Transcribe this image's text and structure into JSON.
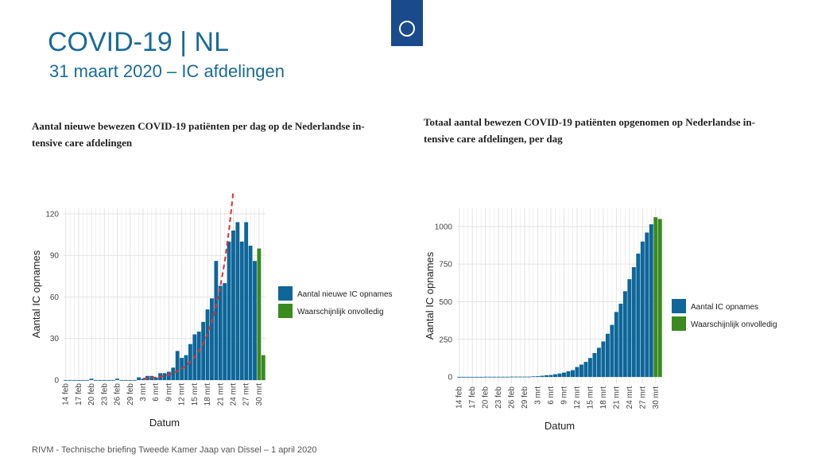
{
  "slide": {
    "title": "COVID-19 | NL",
    "subtitle": "31 maart 2020 – IC afdelingen",
    "footer": "RIVM - Technische briefing Tweede Kamer Jaap van Dissel – 1 april 2020"
  },
  "chart_data": [
    {
      "type": "bar",
      "title": [
        "Aantal nieuwe bewezen COVID-19 patiënten per dag op de Nederlandse in-",
        "tensive care afdelingen"
      ],
      "xlabel": "Datum",
      "ylabel": "Aantal IC opnames",
      "categories": [
        "14 feb",
        null,
        null,
        "17 feb",
        null,
        null,
        "20 feb",
        null,
        null,
        "23 feb",
        null,
        null,
        "26 feb",
        null,
        null,
        "29 feb",
        null,
        null,
        "3 mrt",
        null,
        null,
        "6 mrt",
        null,
        null,
        "9 mrt",
        null,
        null,
        "12 mrt",
        null,
        null,
        "15 mrt",
        null,
        null,
        "18 mrt",
        null,
        null,
        "21 mrt",
        null,
        null,
        "24 mrt",
        null,
        null,
        "27 mrt",
        null,
        null,
        "30 mrt",
        null
      ],
      "series": [
        {
          "name": "Aantal nieuwe IC opnames",
          "color": "#0e6699",
          "values": [
            0,
            0,
            0,
            0,
            0,
            0,
            1,
            0,
            0,
            0,
            0,
            0,
            1,
            0,
            0,
            0,
            0,
            2,
            1,
            3,
            3,
            2,
            5,
            5,
            6,
            9,
            21,
            16,
            18,
            26,
            33,
            35,
            42,
            51,
            59,
            86,
            68,
            70,
            100,
            108,
            114,
            100,
            114,
            97,
            86,
            null,
            null
          ]
        },
        {
          "name": "Waarschijnlijk onvolledig",
          "color": "#3a8a1e",
          "values": [
            null,
            null,
            null,
            null,
            null,
            null,
            null,
            null,
            null,
            null,
            null,
            null,
            null,
            null,
            null,
            null,
            null,
            null,
            null,
            null,
            null,
            null,
            null,
            null,
            null,
            null,
            null,
            null,
            null,
            null,
            null,
            null,
            null,
            null,
            null,
            null,
            null,
            null,
            null,
            null,
            null,
            null,
            null,
            null,
            null,
            95,
            18
          ]
        },
        {
          "type": "line",
          "color": "#e03030",
          "dashed": true,
          "values": [
            null,
            null,
            null,
            null,
            null,
            null,
            null,
            null,
            null,
            null,
            null,
            null,
            null,
            null,
            null,
            null,
            null,
            null,
            1.0,
            1.3,
            1.6,
            2.0,
            2.5,
            3.2,
            4.0,
            5.1,
            6.5,
            8.2,
            10.4,
            13.1,
            16.6,
            21,
            26.5,
            33.5,
            42.3,
            53.5,
            67.6,
            85.4,
            108,
            136,
            null,
            null,
            null,
            null,
            null,
            null,
            null
          ]
        }
      ],
      "ylim": [
        0,
        124
      ],
      "yticks": [
        0,
        30,
        60,
        90,
        120
      ],
      "grid": true
    },
    {
      "type": "bar",
      "title": [
        "Totaal aantal bewezen COVID-19 patiënten opgenomen op Nederlandse in-",
        "tensive care afdelingen, per dag"
      ],
      "xlabel": "Datum",
      "ylabel": "Aantal IC opnames",
      "categories": [
        "14 feb",
        null,
        null,
        "17 feb",
        null,
        null,
        "20 feb",
        null,
        null,
        "23 feb",
        null,
        null,
        "26 feb",
        null,
        null,
        "29 feb",
        null,
        null,
        "3 mrt",
        null,
        null,
        "6 mrt",
        null,
        null,
        "9 mrt",
        null,
        null,
        "12 mrt",
        null,
        null,
        "15 mrt",
        null,
        null,
        "18 mrt",
        null,
        null,
        "21 mrt",
        null,
        null,
        "24 mrt",
        null,
        null,
        "27 mrt",
        null,
        null,
        "30 mrt",
        null
      ],
      "series": [
        {
          "name": "Aantal IC opnames",
          "color": "#0e6699",
          "values": [
            0,
            0,
            0,
            0,
            0,
            0,
            1,
            1,
            1,
            1,
            1,
            1,
            2,
            2,
            2,
            2,
            2,
            4,
            5,
            8,
            11,
            13,
            18,
            23,
            29,
            38,
            45,
            66,
            82,
            100,
            126,
            159,
            194,
            236,
            287,
            346,
            432,
            487,
            570,
            650,
            730,
            820,
            900,
            960,
            1015,
            null,
            null
          ]
        },
        {
          "name": "Waarschijnlijk onvolledig",
          "color": "#3a8a1e",
          "values": [
            null,
            null,
            null,
            null,
            null,
            null,
            null,
            null,
            null,
            null,
            null,
            null,
            null,
            null,
            null,
            null,
            null,
            null,
            null,
            null,
            null,
            null,
            null,
            null,
            null,
            null,
            null,
            null,
            null,
            null,
            null,
            null,
            null,
            null,
            null,
            null,
            null,
            null,
            null,
            null,
            null,
            null,
            null,
            null,
            null,
            1062,
            1050
          ]
        }
      ],
      "ylim": [
        -42,
        1121
      ],
      "yticks": [
        0,
        250,
        500,
        750,
        1000
      ],
      "grid": true
    }
  ]
}
